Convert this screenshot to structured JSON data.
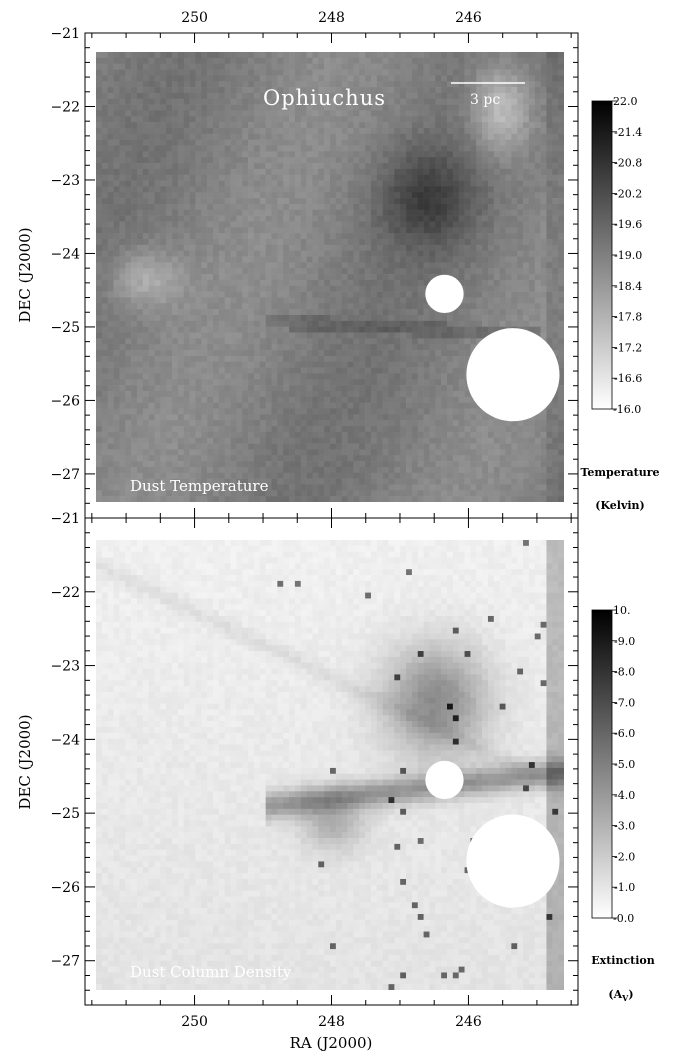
{
  "chart_data": [
    {
      "type": "heatmap",
      "title": "",
      "panel_label": "Dust Temperature",
      "region_label": "Ophiuchus",
      "scale_bar_label": "3 pc",
      "xlabel": "",
      "ylabel": "DEC (J2000)",
      "xlim": [
        251.6,
        244.4
      ],
      "ylim": [
        -27.6,
        -21.0
      ],
      "x_ticks": [
        250,
        248,
        246
      ],
      "x_tick_labels": [
        "250",
        "248",
        "246"
      ],
      "y_ticks": [
        -21,
        -22,
        -23,
        -24,
        -25,
        -26,
        -27
      ],
      "y_tick_labels": [
        "−21",
        "−22",
        "−23",
        "−24",
        "−25",
        "−26",
        "−27"
      ],
      "colorbar": {
        "min": 16.0,
        "max": 22.0,
        "tick_labels": [
          "22.0",
          "21.4",
          "20.8",
          "20.2",
          "19.6",
          "19.0",
          "18.4",
          "17.8",
          "17.2",
          "16.6",
          "16.0"
        ],
        "title_line1": "Temperature",
        "title_line2": "(Kelvin)",
        "colormap": "white-to-black"
      },
      "masked_regions": [
        {
          "ra": 246.35,
          "dec": -24.55,
          "radius_deg": 0.28
        },
        {
          "ra": 245.35,
          "dec": -25.65,
          "radius_deg": 0.68
        }
      ]
    },
    {
      "type": "heatmap",
      "title": "",
      "panel_label": "Dust Column Density",
      "xlabel": "RA (J2000)",
      "ylabel": "DEC (J2000)",
      "xlim": [
        251.6,
        244.4
      ],
      "ylim": [
        -27.6,
        -21.0
      ],
      "x_ticks": [
        250,
        248,
        246
      ],
      "x_tick_labels": [
        "250",
        "248",
        "246"
      ],
      "y_ticks": [
        -21,
        -22,
        -23,
        -24,
        -25,
        -26,
        -27
      ],
      "y_tick_labels": [
        "−21",
        "−22",
        "−23",
        "−24",
        "−25",
        "−26",
        "−27"
      ],
      "colorbar": {
        "min": 0.0,
        "max": 10.0,
        "tick_labels": [
          "10.",
          "9.0",
          "8.0",
          "7.0",
          "6.0",
          "5.0",
          "4.0",
          "3.0",
          "2.0",
          "1.0",
          "0.0"
        ],
        "title_line1": "Extinction",
        "title_line2": "(A",
        "title_line2_sub": "V",
        "title_line2_end": ")",
        "colormap": "white-to-black"
      },
      "masked_regions": [
        {
          "ra": 246.35,
          "dec": -24.55,
          "radius_deg": 0.28
        },
        {
          "ra": 245.35,
          "dec": -25.65,
          "radius_deg": 0.68
        }
      ]
    }
  ]
}
